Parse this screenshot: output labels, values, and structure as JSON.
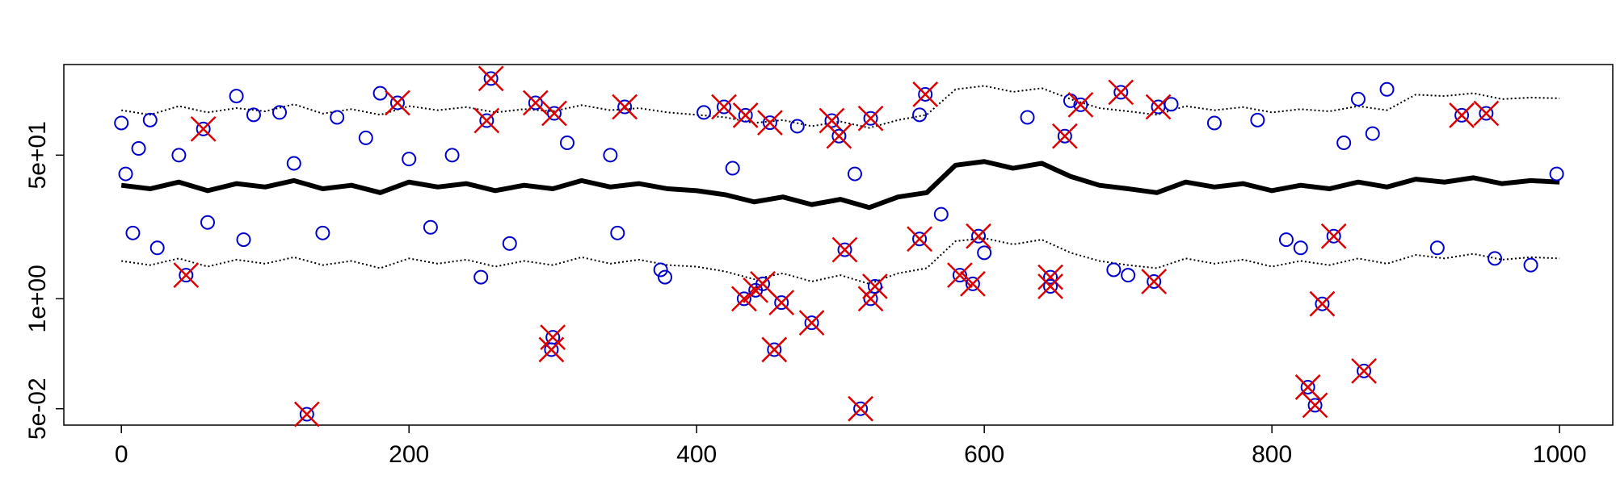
{
  "chart_data": {
    "type": "line",
    "log_y": true,
    "xlim": [
      -40,
      1037
    ],
    "xticks": [
      0,
      200,
      400,
      600,
      800,
      1000
    ],
    "ylim": [
      0.032,
      590
    ],
    "yticks": [
      {
        "value": 0.05,
        "label": "5e-02"
      },
      {
        "value": 1,
        "label": "1e+00"
      },
      {
        "value": 50,
        "label": "5e+01"
      }
    ],
    "x": [
      0,
      20,
      40,
      60,
      80,
      100,
      120,
      140,
      160,
      180,
      200,
      220,
      240,
      260,
      280,
      300,
      320,
      340,
      360,
      380,
      400,
      420,
      440,
      460,
      480,
      500,
      520,
      540,
      560,
      580,
      600,
      620,
      640,
      660,
      680,
      700,
      720,
      740,
      760,
      780,
      800,
      820,
      840,
      860,
      880,
      900,
      920,
      940,
      960,
      980,
      1000
    ],
    "series": [
      {
        "color": "#000000",
        "style": "solid",
        "values": [
          22,
          20,
          24,
          19,
          23,
          21,
          25,
          20,
          22,
          18,
          24,
          21,
          23,
          19,
          22,
          20,
          25,
          21,
          23,
          20,
          19,
          17,
          14,
          16,
          13,
          15,
          12,
          16,
          18,
          38,
          42,
          35,
          40,
          28,
          22,
          20,
          18,
          24,
          21,
          23,
          19,
          22,
          20,
          24,
          21,
          26,
          24,
          27,
          23,
          25,
          24
        ]
      },
      {
        "color": "#000000",
        "style": "dotted",
        "values": [
          170,
          150,
          190,
          160,
          180,
          165,
          200,
          155,
          175,
          150,
          190,
          170,
          185,
          160,
          175,
          165,
          195,
          170,
          180,
          160,
          150,
          140,
          120,
          130,
          110,
          125,
          105,
          130,
          150,
          300,
          330,
          280,
          310,
          230,
          180,
          165,
          150,
          190,
          170,
          185,
          160,
          175,
          165,
          190,
          170,
          260,
          250,
          270,
          230,
          240,
          235
        ]
      },
      {
        "color": "#000000",
        "style": "dotted",
        "values": [
          2.8,
          2.5,
          3,
          2.4,
          2.9,
          2.6,
          3.1,
          2.5,
          2.8,
          2.3,
          3,
          2.6,
          2.9,
          2.4,
          2.8,
          2.5,
          3.1,
          2.6,
          2.9,
          2.5,
          2.4,
          2.1,
          1.7,
          2,
          1.6,
          1.9,
          1.5,
          2,
          2.3,
          4.8,
          5.2,
          4.4,
          5,
          3.5,
          2.8,
          2.5,
          2.3,
          3,
          2.6,
          2.9,
          2.4,
          2.8,
          2.5,
          3,
          2.6,
          3.3,
          3,
          3.4,
          2.9,
          3.1,
          3
        ]
      }
    ],
    "points": {
      "color": "#0000cc",
      "x": [
        0,
        3,
        8,
        12,
        20,
        25,
        40,
        60,
        80,
        85,
        92,
        110,
        120,
        140,
        150,
        170,
        180,
        200,
        215,
        230,
        250,
        270,
        310,
        340,
        345,
        375,
        378,
        405,
        425,
        470,
        510,
        555,
        570,
        600,
        630,
        660,
        690,
        700,
        730,
        760,
        790,
        810,
        820,
        850,
        860,
        870,
        880,
        915,
        955,
        980,
        998
      ],
      "values": [
        120,
        30,
        6,
        60,
        130,
        4,
        50,
        8,
        250,
        5,
        150,
        160,
        40,
        6,
        140,
        80,
        270,
        45,
        7,
        50,
        1.8,
        4.5,
        70,
        50,
        6,
        2.2,
        1.8,
        160,
        35,
        110,
        30,
        150,
        10,
        3.5,
        140,
        220,
        2.2,
        1.9,
        200,
        120,
        130,
        5,
        4,
        70,
        230,
        90,
        300,
        4,
        3,
        2.5,
        30
      ]
    },
    "outliers": {
      "color": "#dd0000",
      "x": [
        45,
        57,
        129,
        192,
        257,
        254,
        288,
        300,
        299,
        301,
        350,
        419,
        434,
        433,
        441,
        446,
        451,
        454,
        459,
        480,
        494,
        499,
        503,
        514,
        521,
        524,
        521,
        559,
        555,
        583,
        592,
        596,
        646,
        646,
        656,
        667,
        695,
        718,
        721,
        835,
        825,
        830,
        864,
        843,
        932,
        949
      ],
      "values": [
        1.9,
        102,
        0.043,
        208,
        403,
        128,
        208,
        0.35,
        0.25,
        156,
        186,
        186,
        148,
        1.0,
        1.26,
        1.5,
        121,
        0.25,
        0.9,
        0.52,
        128,
        84,
        3.8,
        0.05,
        1.0,
        1.4,
        136,
        262,
        5.1,
        1.9,
        1.5,
        5.5,
        1.8,
        1.4,
        84,
        197,
        277,
        1.6,
        186,
        0.87,
        0.09,
        0.055,
        0.14,
        5.5,
        148,
        156
      ]
    }
  }
}
